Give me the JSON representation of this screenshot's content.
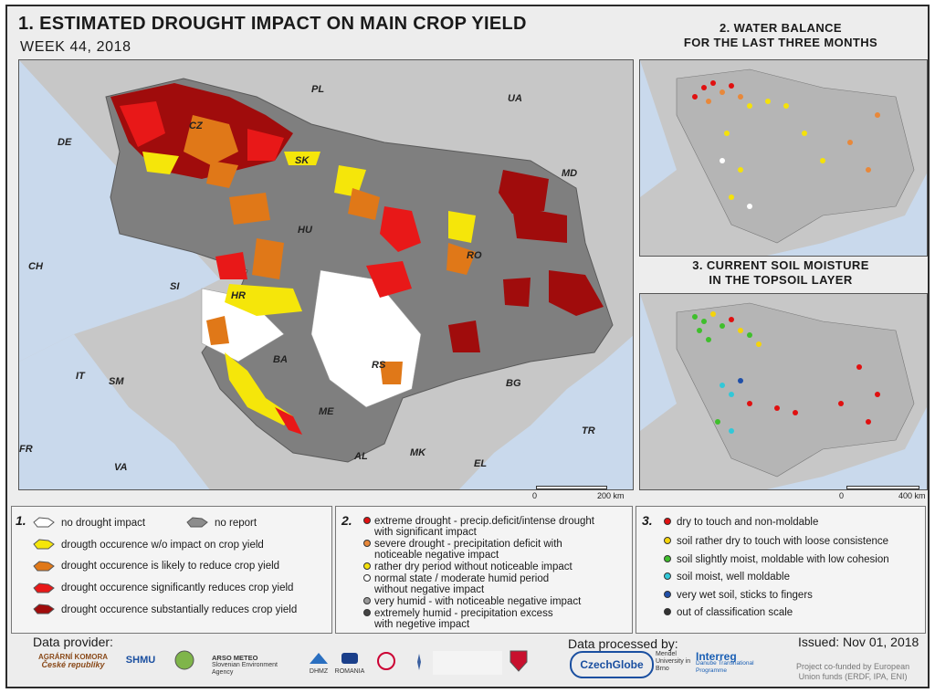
{
  "header": {
    "title": "1. ESTIMATED DROUGHT IMPACT ON MAIN CROP YIELD",
    "week": "WEEK 44, 2018"
  },
  "inset_water": {
    "title_line1": "2. WATER BALANCE",
    "title_line2": "FOR THE LAST THREE MONTHS"
  },
  "inset_soil": {
    "title_line1": "3. CURRENT SOIL MOISTURE",
    "title_line2": "IN THE TOPSOIL LAYER",
    "scale_start": "0",
    "scale_end": "400 km"
  },
  "main_map": {
    "scale_start": "0",
    "scale_end": "200 km",
    "countries": [
      "PL",
      "UA",
      "DE",
      "CZ",
      "SK",
      "MD",
      "HU",
      "RO",
      "CH",
      "SI",
      "HR",
      "BA",
      "RS",
      "IT",
      "SM",
      "BG",
      "ME",
      "TR",
      "FR",
      "AL",
      "MK",
      "EL",
      "VA"
    ]
  },
  "legend1": {
    "num": "1.",
    "items": [
      {
        "label": "no drought impact",
        "color": "#ffffff"
      },
      {
        "label": "no report",
        "color": "#8c8c8c"
      },
      {
        "label": "drougth occurence w/o impact on crop yield",
        "color": "#f5e60a"
      },
      {
        "label": "drought occurence is likely to reduce crop yield",
        "color": "#e07818"
      },
      {
        "label": "drought occurence significantly reduces crop yield",
        "color": "#e81818"
      },
      {
        "label": "drought occurence substantially reduces crop yield",
        "color": "#a00c0c"
      }
    ]
  },
  "legend2": {
    "num": "2.",
    "items": [
      {
        "line1": "extreme drought - precip.deficit/intense drought",
        "line2": "with significant impact",
        "color": "#e01010"
      },
      {
        "line1": "severe drought - precipitation deficit with",
        "line2": "noticeable negative impact",
        "color": "#e8883a"
      },
      {
        "line1": "rather dry period without noticeable impact",
        "line2": "",
        "color": "#f5e20a"
      },
      {
        "line1": "normal state / moderate humid period",
        "line2": "without negative impact",
        "color": "#ffffff"
      },
      {
        "line1": "very humid - with noticeable negative impact",
        "line2": "",
        "color": "#9a9a9a"
      },
      {
        "line1": "extremely humid - precipitation excess",
        "line2": "with negetive impact",
        "color": "#444444"
      }
    ]
  },
  "legend3": {
    "num": "3.",
    "items": [
      {
        "label": "dry to touch and non-moldable",
        "color": "#e01010"
      },
      {
        "label": "soil rather dry to touch with loose consistence",
        "color": "#f5d40a"
      },
      {
        "label": "soil slightly moist, moldable with low cohesion",
        "color": "#3fbf2c"
      },
      {
        "label": "soil moist, well moldable",
        "color": "#32c8d8"
      },
      {
        "label": "very wet soil, sticks to fingers",
        "color": "#1f4fa8"
      },
      {
        "label": "out of classification scale",
        "color": "#333333"
      }
    ]
  },
  "footer": {
    "provider_label": "Data provider:",
    "processed_label": "Data processed by:",
    "issued": "Issued: Nov 01, 2018",
    "funding_line1": "Project co-funded by European",
    "funding_line2": "Union funds (ERDF, IPA, ENI)",
    "logos": {
      "agrarni_line1": "AGRÁRNÍ KOMORA",
      "agrarni_line2": "České republiky",
      "shmu": "SHMU",
      "arso_line1": "ARSO METEO",
      "arso_line2": "Slovenian Environment Agency",
      "dhmz": "DHMZ",
      "meteo_romania": "ROMANIA",
      "czechglobe": "CzechGlobe",
      "mendel": "Mendel University in Brno",
      "interreg": "Interreg",
      "interreg_sub": "Danube Transnational Programme"
    }
  }
}
